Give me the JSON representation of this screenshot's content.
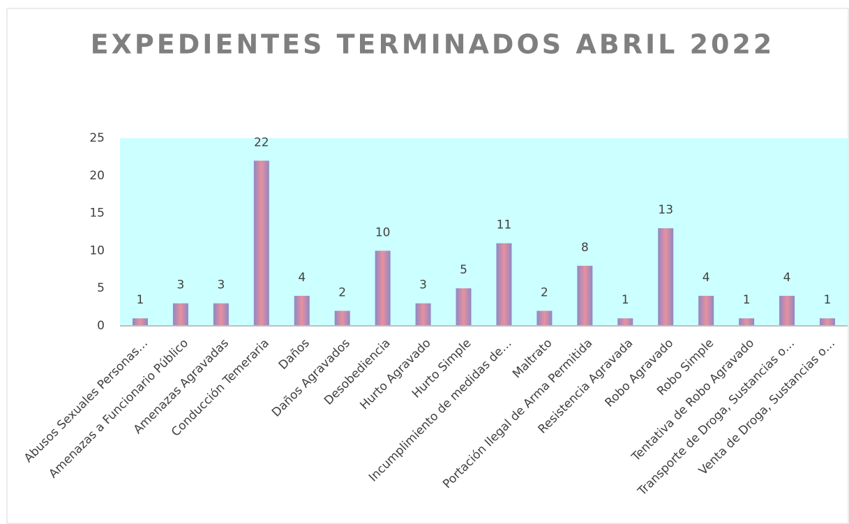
{
  "chart_data": {
    "type": "bar",
    "title": "EXPEDIENTES TERMINADOS ABRIL 2022",
    "categories": [
      "Abusos Sexuales Personas…",
      "Amenazas a Funcionario Público",
      "Amenazas Agravadas",
      "Conducción Temeraria",
      "Daños",
      "Daños Agravados",
      "Desobediencia",
      "Hurto Agravado",
      "Hurto Simple",
      "Incumplimiento de medidas de…",
      "Maltrato",
      "Portación Ilegal de Arma Permitida",
      "Resistencia Agravada",
      "Robo Agravado",
      "Robo Simple",
      "Tentativa de Robo Agravado",
      "Transporte de Droga, Sustancias o…",
      "Venta de Droga, Sustancias o…"
    ],
    "values": [
      1,
      3,
      3,
      22,
      4,
      2,
      10,
      3,
      5,
      11,
      2,
      8,
      1,
      13,
      4,
      1,
      4,
      1
    ],
    "color": "#e8909e",
    "ylim": [
      0,
      25
    ],
    "yticks": [
      0,
      5,
      10,
      15,
      20,
      25
    ],
    "grid": false
  }
}
